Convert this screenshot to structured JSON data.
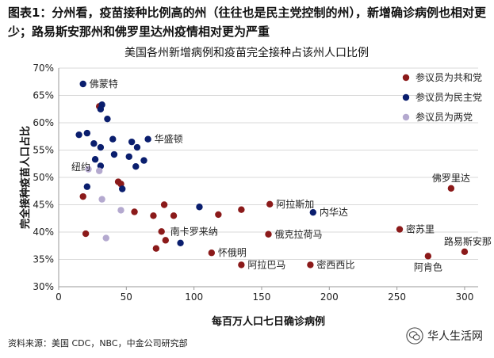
{
  "header": {
    "title": "图表1：分州看，疫苗接种比例高的州（往往也是民主党控制的州），新增确诊病例也相对更少；路易斯安那州和佛罗里达州疫情相对更为严重"
  },
  "source": "资料来源：美国 CDC，NBC，中金公司研究部",
  "watermark": {
    "text": "华人生活网"
  },
  "chart_data": {
    "type": "scatter",
    "title": "美国各州新增病例和疫苗完全接种占该州人口比例",
    "xlabel": "每百万人口七日确诊病例",
    "ylabel": "完全接种疫苗人口占比",
    "xlim": [
      0,
      310
    ],
    "ylim": [
      30,
      70
    ],
    "xticks": [
      0,
      50,
      100,
      150,
      200,
      250,
      300
    ],
    "yticks": [
      30,
      35,
      40,
      45,
      50,
      55,
      60,
      65,
      70
    ],
    "xtick_labels": [
      "0",
      "50",
      "100",
      "150",
      "200",
      "250",
      "300"
    ],
    "ytick_labels": [
      "30%",
      "35%",
      "40%",
      "45%",
      "50%",
      "55%",
      "60%",
      "65%",
      "70%"
    ],
    "grid": "horizontal",
    "legend_position": "top-right",
    "series": [
      {
        "name": "参议员为共和党",
        "color": "#8b1a1a",
        "points": [
          {
            "x": 30,
            "y": 63
          },
          {
            "x": 18,
            "y": 46.5
          },
          {
            "x": 20,
            "y": 39.7
          },
          {
            "x": 44,
            "y": 49.2
          },
          {
            "x": 46,
            "y": 48.8
          },
          {
            "x": 56,
            "y": 43.7
          },
          {
            "x": 70,
            "y": 43
          },
          {
            "x": 78,
            "y": 45
          },
          {
            "x": 85,
            "y": 43
          },
          {
            "x": 118,
            "y": 43.2
          },
          {
            "x": 135,
            "y": 44.1
          },
          {
            "x": 156,
            "y": 45.1
          },
          {
            "x": 76,
            "y": 40.1
          },
          {
            "x": 79,
            "y": 38.5
          },
          {
            "x": 72,
            "y": 37
          },
          {
            "x": 113,
            "y": 36.2
          },
          {
            "x": 135,
            "y": 34
          },
          {
            "x": 155,
            "y": 39.6
          },
          {
            "x": 186,
            "y": 34
          },
          {
            "x": 252,
            "y": 40.5
          },
          {
            "x": 273,
            "y": 35.6
          },
          {
            "x": 300,
            "y": 36.4
          },
          {
            "x": 290,
            "y": 48
          }
        ]
      },
      {
        "name": "参议员为民主党",
        "color": "#0a1e6e",
        "points": [
          {
            "x": 18,
            "y": 67.1
          },
          {
            "x": 32,
            "y": 63.3
          },
          {
            "x": 31,
            "y": 62.5
          },
          {
            "x": 36,
            "y": 60.7
          },
          {
            "x": 15,
            "y": 57.8
          },
          {
            "x": 21,
            "y": 58.1
          },
          {
            "x": 26,
            "y": 56.2
          },
          {
            "x": 31,
            "y": 55.5
          },
          {
            "x": 40,
            "y": 57
          },
          {
            "x": 54,
            "y": 56.5
          },
          {
            "x": 58,
            "y": 55.5
          },
          {
            "x": 66,
            "y": 57
          },
          {
            "x": 41,
            "y": 54.2
          },
          {
            "x": 52,
            "y": 53.8
          },
          {
            "x": 63,
            "y": 53.1
          },
          {
            "x": 27,
            "y": 53.3
          },
          {
            "x": 31,
            "y": 52.1
          },
          {
            "x": 57,
            "y": 52
          },
          {
            "x": 21,
            "y": 48.3
          },
          {
            "x": 47,
            "y": 47.9
          },
          {
            "x": 104,
            "y": 44.6
          },
          {
            "x": 90,
            "y": 38
          },
          {
            "x": 188,
            "y": 43.6
          }
        ]
      },
      {
        "name": "参议员为两党",
        "color": "#b4a9cf",
        "points": [
          {
            "x": 22,
            "y": 51.5
          },
          {
            "x": 30,
            "y": 51.2
          },
          {
            "x": 32,
            "y": 46
          },
          {
            "x": 46,
            "y": 44
          },
          {
            "x": 35,
            "y": 38.9
          }
        ]
      }
    ],
    "annotations": [
      {
        "text": "佛蒙特",
        "x": 18,
        "y": 67.1,
        "anchor": "right"
      },
      {
        "text": "华盛顿",
        "x": 66,
        "y": 57,
        "anchor": "right"
      },
      {
        "text": "纽约",
        "x": 27,
        "y": 53.3,
        "anchor": "left"
      },
      {
        "text": "阿拉斯加",
        "x": 156,
        "y": 45.1,
        "anchor": "right"
      },
      {
        "text": "内华达",
        "x": 188,
        "y": 43.6,
        "anchor": "right"
      },
      {
        "text": "佛罗里达",
        "x": 290,
        "y": 48,
        "anchor": "above"
      },
      {
        "text": "南卡罗来纳",
        "x": 79,
        "y": 38.5,
        "anchor": "up-right"
      },
      {
        "text": "俄克拉荷马",
        "x": 155,
        "y": 39.6,
        "anchor": "right"
      },
      {
        "text": "密苏里",
        "x": 252,
        "y": 40.5,
        "anchor": "right"
      },
      {
        "text": "路易斯安那",
        "x": 300,
        "y": 36.4,
        "anchor": "up-left"
      },
      {
        "text": "怀俄明",
        "x": 113,
        "y": 36.2,
        "anchor": "right"
      },
      {
        "text": "阿拉巴马",
        "x": 135,
        "y": 34,
        "anchor": "right"
      },
      {
        "text": "密西西比",
        "x": 186,
        "y": 34,
        "anchor": "right"
      },
      {
        "text": "阿肯色",
        "x": 273,
        "y": 35.6,
        "anchor": "below"
      }
    ]
  }
}
